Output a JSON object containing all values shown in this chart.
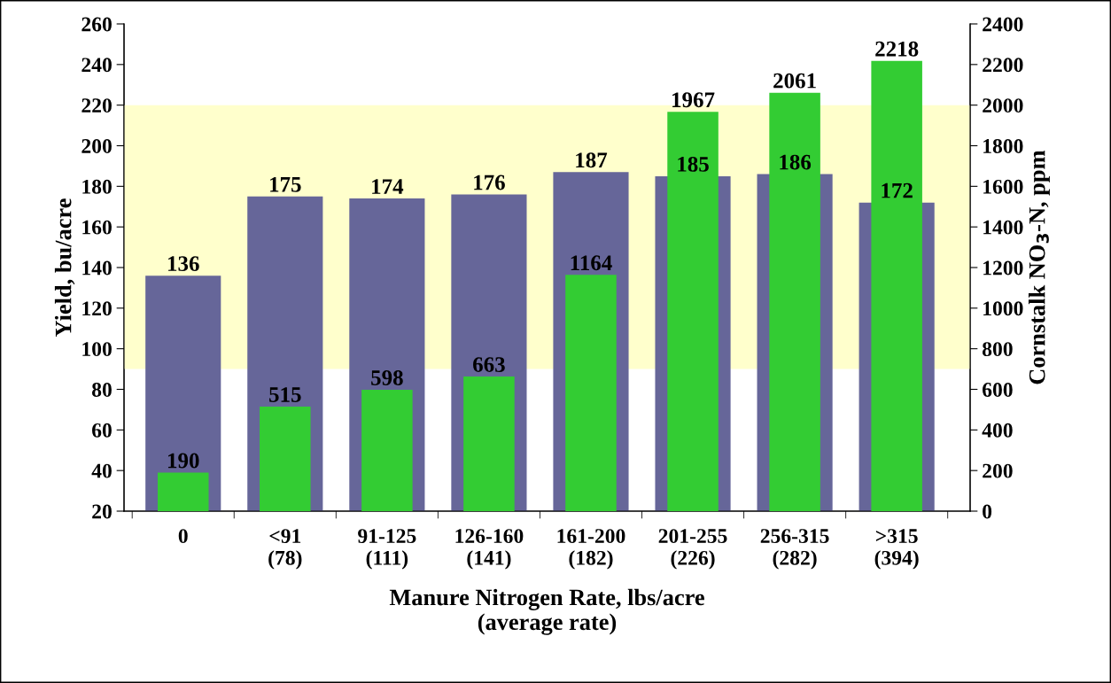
{
  "chart_data": {
    "type": "bar",
    "xlabel": "Manure Nitrogen Rate, lbs/acre\n(average rate)",
    "ylabel": "Yield, bu/acre",
    "y2label": "Cornstalk NO$_{3}$-N, ppm",
    "categories": [
      "0",
      "<91\n(78)",
      "91-125\n(111)",
      "126-160\n(141)",
      "161-200\n(182)",
      "201-255\n(226)",
      "256-315\n(282)",
      ">315\n(394)"
    ],
    "series": [
      {
        "color": "#666699",
        "values": [
          136,
          175,
          174,
          176,
          187,
          185,
          186,
          172
        ]
      },
      {
        "color": "#33cc33",
        "axis": "y2",
        "values": [
          190,
          515,
          598,
          663,
          1164,
          1967,
          2061,
          2218
        ]
      }
    ],
    "ylim": [
      20,
      260
    ],
    "yticks": [
      20,
      40,
      60,
      80,
      100,
      120,
      140,
      160,
      180,
      200,
      220,
      240,
      260
    ],
    "y2lim": [
      0,
      2400
    ],
    "y2ticks": [
      0,
      200,
      400,
      600,
      800,
      1000,
      1200,
      1400,
      1600,
      1800,
      2000,
      2200,
      2400
    ],
    "bands": [
      {
        "axis": "y2",
        "from": 700,
        "to": 2000,
        "color": "#ffffcc"
      }
    ],
    "data_labels": true,
    "grid": false,
    "legend": false
  }
}
